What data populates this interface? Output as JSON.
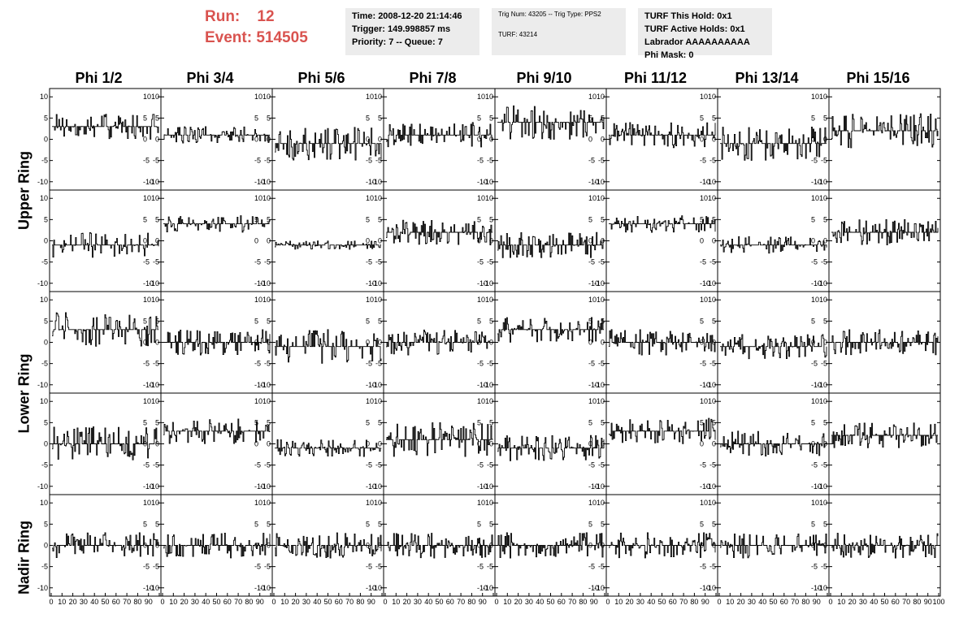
{
  "header": {
    "run_label": "Run:",
    "run_value": "12",
    "event_label": "Event:",
    "event_value": "514505"
  },
  "time_box": {
    "time": "Time: 2008-12-20 21:14:46",
    "trigger": "Trigger: 149.998857 ms",
    "priority": "Priority: 7 -- Queue: 7"
  },
  "trig_box": {
    "trig_line": "Trig Num: 43205 -- Trig Type: PPS2",
    "turf_line": "TURF: 43214"
  },
  "turf_box": {
    "this_hold": "TURF This Hold: 0x1",
    "active_holds": "TURF Active Holds: 0x1",
    "labrador": "Labrador AAAAAAAAAA",
    "phi_mask": "Phi Mask: 0"
  },
  "columns": [
    "Phi 1/2",
    "Phi 3/4",
    "Phi 5/6",
    "Phi 7/8",
    "Phi 9/10",
    "Phi 11/12",
    "Phi 13/14",
    "Phi 15/16"
  ],
  "rings": [
    "Upper Ring",
    "Lower Ring",
    "Nadir Ring"
  ],
  "chart_data": {
    "type": "line",
    "title": "",
    "grid": false,
    "xlim": [
      0,
      100
    ],
    "ylim": [
      -11,
      11
    ],
    "x_ticks": [
      "0",
      "10",
      "20",
      "30",
      "40",
      "50",
      "60",
      "70",
      "80",
      "90",
      "100"
    ],
    "y_ticks": [
      "10",
      "5",
      "0",
      "-5",
      "-10"
    ],
    "panel_rows": 5,
    "panel_cols": 8,
    "samples_per_trace": 128,
    "baseline_offsets": [
      [
        3,
        1,
        -1,
        1,
        4,
        1,
        -1,
        2
      ],
      [
        -1,
        4,
        -1,
        2,
        -1,
        4,
        -1,
        2
      ],
      [
        3,
        0,
        -1,
        0,
        3,
        0,
        -1,
        0
      ],
      [
        0,
        3,
        -1,
        1,
        -1,
        3,
        0,
        2
      ],
      [
        0,
        0,
        0,
        0,
        0,
        0,
        0,
        0
      ]
    ],
    "noise_amplitude": [
      [
        3,
        2,
        4,
        3,
        4,
        3,
        4,
        4
      ],
      [
        3,
        2,
        1,
        3,
        3,
        2,
        2,
        3
      ],
      [
        4,
        3,
        4,
        3,
        3,
        3,
        3,
        3
      ],
      [
        4,
        3,
        2,
        4,
        3,
        3,
        3,
        3
      ],
      [
        3,
        3,
        3,
        3,
        3,
        3,
        3,
        3
      ]
    ]
  }
}
